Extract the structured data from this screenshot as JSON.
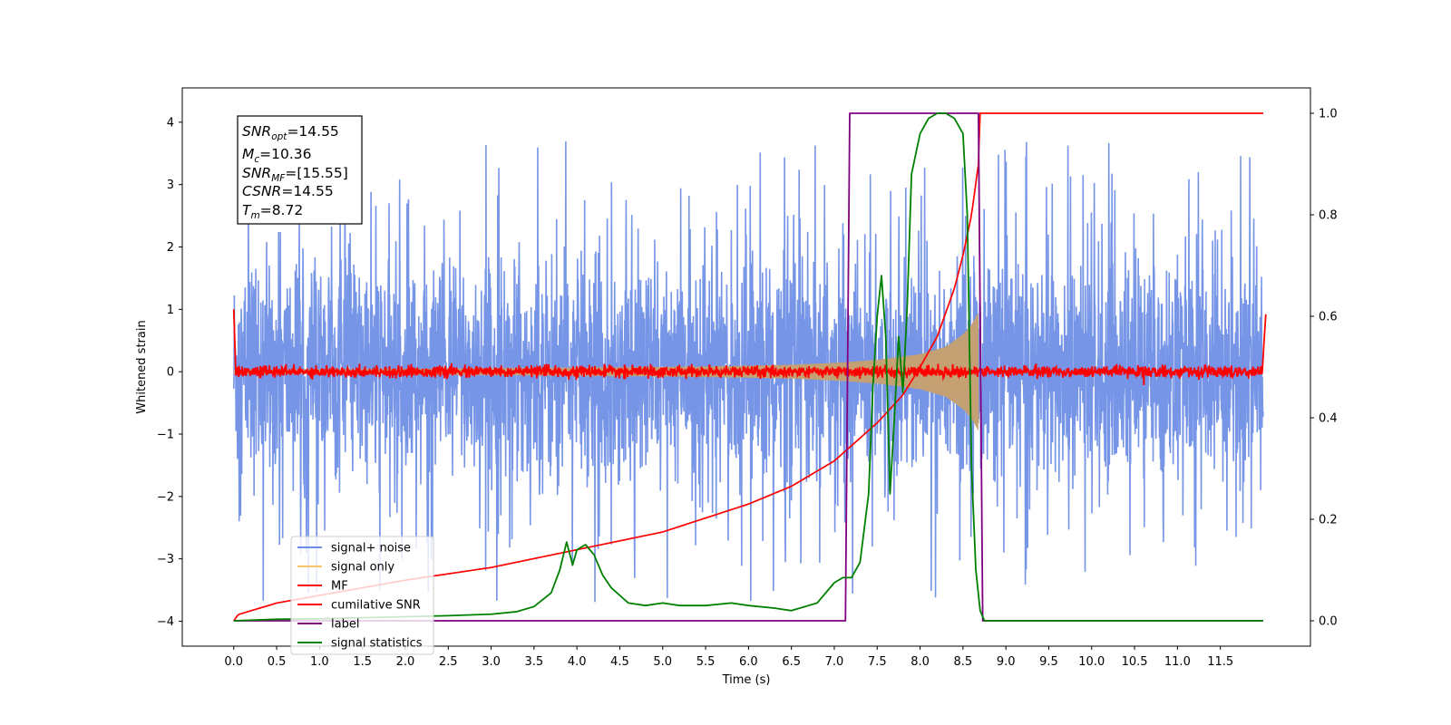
{
  "chart_data": {
    "type": "line",
    "title": "",
    "xlabel": "Time (s)",
    "ylabel": "Whitened strain",
    "xlim": [
      -0.6,
      12.55
    ],
    "ylim": [
      -4.4,
      4.55
    ],
    "y2lim": [
      -0.05,
      1.05
    ],
    "x_ticks": [
      "0.0",
      "0.5",
      "1.0",
      "1.5",
      "2.0",
      "2.5",
      "3.0",
      "3.5",
      "4.0",
      "4.5",
      "5.0",
      "5.5",
      "6.0",
      "6.5",
      "7.0",
      "7.5",
      "8.0",
      "8.5",
      "9.0",
      "9.5",
      "10.0",
      "10.5",
      "11.0",
      "11.5"
    ],
    "y_ticks": [
      "4",
      "3",
      "2",
      "1",
      "0",
      "−1",
      "−2",
      "−3",
      "−4"
    ],
    "y2_ticks": [
      "1.0",
      "0.8",
      "0.6",
      "0.4",
      "0.2",
      "0.0"
    ],
    "grid": false,
    "legend_position": "lower-left",
    "annotation": {
      "snr_opt": {
        "base": "SNR",
        "sub": "opt",
        "value": "=14.55"
      },
      "mc": {
        "base": "M",
        "sub": "c",
        "value": "=10.36"
      },
      "snr_mf": {
        "base": "SNR",
        "sub": "MF",
        "value": "=[15.55]"
      },
      "csnr": {
        "base": "CSNR",
        "value": "=14.55"
      },
      "tm": {
        "base": "T",
        "sub": "m",
        "value": "=8.72"
      }
    },
    "series": [
      {
        "name": "signal+ noise",
        "color": "#6f8fe6",
        "axis": "left",
        "kind": "noise",
        "envelope_x": [
          0.0,
          12.0
        ],
        "typical_amplitude": 1.6,
        "peak_amplitude": 3.7
      },
      {
        "name": "signal only",
        "color": "#f5c56a",
        "axis": "left",
        "kind": "chirp",
        "start": 0.0,
        "merger": 8.68,
        "amplitude_x": [
          0.0,
          2.0,
          4.0,
          5.5,
          6.5,
          7.0,
          7.5,
          8.0,
          8.3,
          8.5,
          8.6,
          8.68
        ],
        "amplitude_y": [
          0.03,
          0.04,
          0.06,
          0.08,
          0.11,
          0.14,
          0.19,
          0.28,
          0.4,
          0.6,
          0.75,
          0.95
        ]
      },
      {
        "name": "MF",
        "color": "#ff0000",
        "axis": "left",
        "kind": "mf",
        "x": [
          0.0,
          0.02,
          0.05,
          12.0,
          12.01,
          12.03
        ],
        "y": [
          1.0,
          0.0,
          0.0,
          0.0,
          0.5,
          0.92
        ],
        "noise_amplitude": 0.1
      },
      {
        "name": "cumilative SNR",
        "color": "#ff0000",
        "axis": "right",
        "x": [
          0.0,
          0.05,
          0.5,
          1.0,
          2.0,
          3.0,
          4.0,
          5.0,
          6.0,
          6.5,
          7.0,
          7.5,
          7.8,
          8.0,
          8.2,
          8.4,
          8.5,
          8.6,
          8.68,
          8.7,
          12.0
        ],
        "y": [
          0.0,
          0.012,
          0.035,
          0.05,
          0.08,
          0.105,
          0.14,
          0.175,
          0.23,
          0.265,
          0.315,
          0.39,
          0.445,
          0.5,
          0.56,
          0.655,
          0.72,
          0.8,
          0.9,
          1.0,
          1.0
        ]
      },
      {
        "name": "label",
        "color": "#800080",
        "axis": "right",
        "x": [
          0.0,
          7.13,
          7.18,
          8.68,
          8.73,
          12.0
        ],
        "y": [
          0.0,
          0.0,
          1.0,
          1.0,
          0.0,
          0.0
        ]
      },
      {
        "name": "signal statistics",
        "color": "#008000",
        "axis": "right",
        "x": [
          0.0,
          0.5,
          1.0,
          1.5,
          2.0,
          2.5,
          3.0,
          3.3,
          3.5,
          3.7,
          3.8,
          3.88,
          3.95,
          4.0,
          4.1,
          4.2,
          4.3,
          4.4,
          4.5,
          4.6,
          4.8,
          5.0,
          5.2,
          5.5,
          5.8,
          6.0,
          6.3,
          6.5,
          6.8,
          7.0,
          7.1,
          7.2,
          7.3,
          7.4,
          7.45,
          7.5,
          7.55,
          7.6,
          7.65,
          7.7,
          7.75,
          7.8,
          7.85,
          7.9,
          8.0,
          8.1,
          8.2,
          8.3,
          8.4,
          8.5,
          8.55,
          8.6,
          8.65,
          8.7,
          8.75,
          9.0,
          12.0
        ],
        "y": [
          0.0,
          0.003,
          0.004,
          0.006,
          0.008,
          0.01,
          0.013,
          0.018,
          0.028,
          0.055,
          0.1,
          0.155,
          0.11,
          0.14,
          0.15,
          0.13,
          0.09,
          0.065,
          0.05,
          0.035,
          0.03,
          0.035,
          0.03,
          0.03,
          0.035,
          0.03,
          0.025,
          0.02,
          0.035,
          0.075,
          0.085,
          0.085,
          0.115,
          0.25,
          0.46,
          0.6,
          0.68,
          0.56,
          0.25,
          0.4,
          0.56,
          0.45,
          0.62,
          0.88,
          0.96,
          0.99,
          1.0,
          1.0,
          0.99,
          0.96,
          0.8,
          0.3,
          0.1,
          0.02,
          0.0,
          0.0,
          0.0
        ]
      }
    ]
  }
}
